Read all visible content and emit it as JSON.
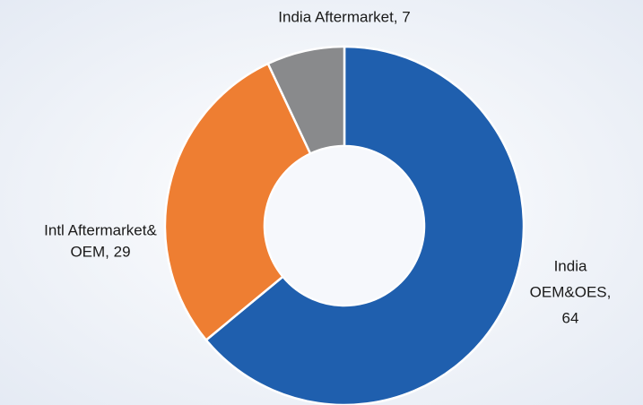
{
  "chart_data": {
    "type": "donut",
    "labels": [
      [
        "India",
        "OEM&OES,",
        "64"
      ],
      [
        "Intl Aftermarket&",
        "OEM, 29"
      ],
      [
        "India Aftermarket, 7"
      ]
    ],
    "values": [
      64,
      29,
      7
    ],
    "colors": [
      "#1f5fae",
      "#ee7e32",
      "#898a8c"
    ]
  }
}
